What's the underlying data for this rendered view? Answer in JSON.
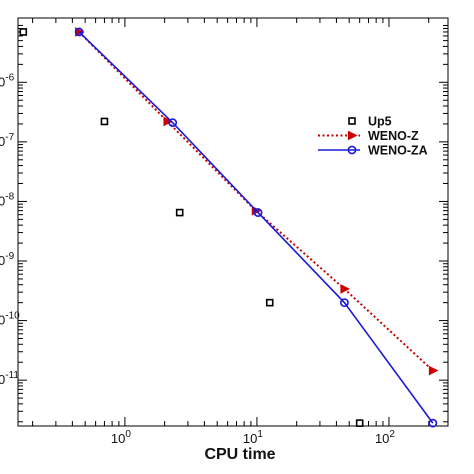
{
  "chart_data": {
    "type": "scatter",
    "xlabel": "CPU time",
    "ylabel": "",
    "x_scale": "log",
    "y_scale": "log",
    "xlim": [
      0.155,
      280
    ],
    "ylim": [
      1.7e-12,
      1.2e-05
    ],
    "grid": false,
    "legend_position": "right",
    "x_ticks": [
      {
        "value": 1,
        "label": "10",
        "exp": "0"
      },
      {
        "value": 10,
        "label": "10",
        "exp": "1"
      },
      {
        "value": 100,
        "label": "10",
        "exp": "2"
      }
    ],
    "y_ticks": [
      {
        "value": 1e-06,
        "label": "0",
        "exp": "-6"
      },
      {
        "value": 1e-07,
        "label": "0",
        "exp": "-7"
      },
      {
        "value": 1e-08,
        "label": "0",
        "exp": "-8"
      },
      {
        "value": 1e-09,
        "label": "0",
        "exp": "-9"
      },
      {
        "value": 1e-10,
        "label": "0",
        "exp": "-10"
      },
      {
        "value": 1e-11,
        "label": "0",
        "exp": "-11"
      }
    ],
    "series": [
      {
        "name": "Up5",
        "style": "markers",
        "color": "#000000",
        "marker": "square-open",
        "x": [
          0.17,
          0.7,
          2.6,
          12.5,
          60.0
        ],
        "y": [
          7e-06,
          2.2e-07,
          6.5e-09,
          2e-10,
          1.9e-12
        ]
      },
      {
        "name": "WENO-Z",
        "style": "dotted-line",
        "color": "#cc0000",
        "marker": "triangle-right",
        "x": [
          0.45,
          2.1,
          9.8,
          46.0,
          215.0
        ],
        "y": [
          7e-06,
          2.2e-07,
          7e-09,
          3.4e-10,
          1.45e-11
        ]
      },
      {
        "name": "WENO-ZA",
        "style": "solid-line",
        "color": "#1a1adb",
        "marker": "circle-open",
        "x": [
          0.45,
          2.3,
          10.2,
          46.0,
          215.0
        ],
        "y": [
          7e-06,
          2.1e-07,
          6.5e-09,
          2e-10,
          1.9e-12
        ]
      }
    ]
  }
}
